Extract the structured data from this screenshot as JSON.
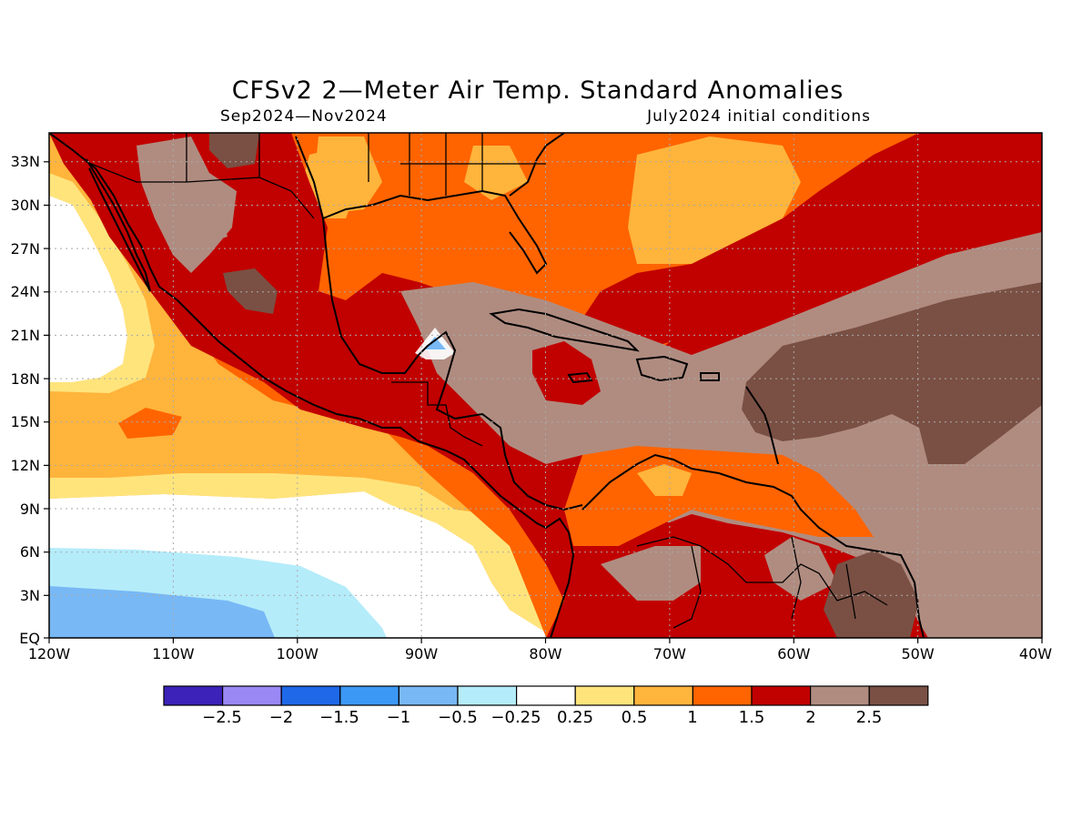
{
  "title": "CFSv2 2—Meter Air Temp. Standard Anomalies",
  "subtitle_left": "Sep2024—Nov2024",
  "subtitle_right": "July2024 initial conditions",
  "axes": {
    "lon_labels": [
      "120W",
      "110W",
      "100W",
      "90W",
      "80W",
      "70W",
      "60W",
      "50W",
      "40W"
    ],
    "lat_labels": [
      "EQ",
      "3N",
      "6N",
      "9N",
      "12N",
      "15N",
      "18N",
      "21N",
      "24N",
      "27N",
      "30N",
      "33N"
    ]
  },
  "colorbar": {
    "labels": [
      "−2.5",
      "−2",
      "−1.5",
      "−1",
      "−0.5",
      "−0.25",
      "0.25",
      "0.5",
      "1",
      "1.5",
      "2",
      "2.5"
    ],
    "colors": [
      "#3c22b8",
      "#9a88f5",
      "#1f68e8",
      "#3c98f5",
      "#78b8f5",
      "#b4ecfa",
      "#ffffff",
      "#ffe47c",
      "#ffb43c",
      "#ff6400",
      "#c10000",
      "#b08c80",
      "#7a5044"
    ]
  },
  "palette": {
    "white": "#ffffff",
    "light_yellow": "#ffe47c",
    "orange_light": "#ffb43c",
    "orange": "#ff6400",
    "red": "#c10000",
    "taupe": "#b08c80",
    "brown": "#7a5044",
    "light_cyan": "#b4ecfa",
    "light_blue": "#78b8f5",
    "blue": "#3c98f5"
  }
}
